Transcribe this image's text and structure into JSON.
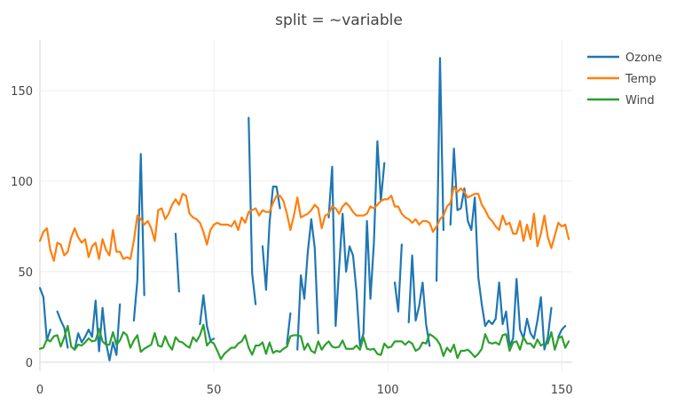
{
  "chart_data": {
    "type": "line",
    "title": "split = ~variable",
    "xlabel": "",
    "ylabel": "",
    "xlim": [
      0,
      153
    ],
    "ylim": [
      -5,
      178
    ],
    "x_ticks": [
      0,
      50,
      100,
      150
    ],
    "y_ticks": [
      0,
      50,
      100,
      150
    ],
    "legend_position": "top-right",
    "series": [
      {
        "name": "Ozone",
        "color": "#1f77b4",
        "values": [
          41,
          36,
          12,
          18,
          null,
          28,
          23,
          19,
          8,
          null,
          7,
          16,
          11,
          14,
          18,
          14,
          34,
          6,
          30,
          11,
          1,
          11,
          4,
          32,
          null,
          null,
          null,
          23,
          45,
          115,
          37,
          null,
          null,
          null,
          null,
          null,
          null,
          29,
          null,
          71,
          39,
          null,
          null,
          23,
          null,
          null,
          21,
          37,
          20,
          12,
          13,
          null,
          null,
          null,
          null,
          null,
          null,
          null,
          null,
          null,
          135,
          49,
          32,
          null,
          64,
          40,
          77,
          97,
          97,
          85,
          null,
          10,
          27,
          null,
          7,
          48,
          35,
          61,
          79,
          63,
          16,
          null,
          null,
          80,
          108,
          20,
          52,
          82,
          50,
          64,
          59,
          39,
          9,
          16,
          78,
          35,
          66,
          122,
          89,
          110,
          null,
          null,
          44,
          28,
          65,
          null,
          22,
          59,
          23,
          31,
          44,
          21,
          9,
          null,
          45,
          168,
          73,
          null,
          76,
          118,
          84,
          85,
          96,
          78,
          73,
          91,
          47,
          32,
          20,
          23,
          21,
          24,
          44,
          21,
          28,
          9,
          13,
          46,
          18,
          13,
          24,
          16,
          13,
          23,
          36,
          7,
          14,
          30,
          null,
          14,
          18,
          20
        ]
      },
      {
        "name": "Temp",
        "color": "#ff7f0e",
        "values": [
          67,
          72,
          74,
          62,
          56,
          66,
          65,
          59,
          61,
          69,
          74,
          69,
          66,
          68,
          58,
          64,
          66,
          57,
          68,
          62,
          59,
          73,
          61,
          61,
          57,
          58,
          57,
          67,
          81,
          79,
          76,
          78,
          74,
          67,
          84,
          85,
          79,
          82,
          87,
          90,
          87,
          93,
          92,
          82,
          80,
          79,
          77,
          72,
          65,
          73,
          76,
          77,
          76,
          76,
          76,
          75,
          78,
          73,
          80,
          77,
          83,
          84,
          85,
          81,
          84,
          83,
          83,
          88,
          92,
          92,
          89,
          82,
          73,
          81,
          91,
          80,
          81,
          82,
          84,
          87,
          85,
          74,
          81,
          82,
          86,
          85,
          82,
          86,
          88,
          86,
          83,
          81,
          81,
          81,
          82,
          86,
          85,
          87,
          89,
          90,
          90,
          92,
          86,
          86,
          82,
          80,
          79,
          77,
          79,
          76,
          78,
          78,
          77,
          72,
          75,
          79,
          81,
          86,
          88,
          97,
          94,
          96,
          94,
          91,
          92,
          93,
          93,
          87,
          84,
          80,
          78,
          75,
          73,
          81,
          76,
          77,
          71,
          71,
          78,
          67,
          76,
          68,
          82,
          64,
          71,
          81,
          69,
          63,
          70,
          77,
          75,
          76,
          68
        ]
      },
      {
        "name": "Wind",
        "color": "#2ca02c",
        "values": [
          7.4,
          8.0,
          12.6,
          11.5,
          14.3,
          14.9,
          8.6,
          13.8,
          20.1,
          8.6,
          6.9,
          9.7,
          9.2,
          10.9,
          13.2,
          11.5,
          12.0,
          18.4,
          11.5,
          9.7,
          9.7,
          16.6,
          9.7,
          12.0,
          16.6,
          14.9,
          8.0,
          12.0,
          14.9,
          5.7,
          7.4,
          8.6,
          9.7,
          16.1,
          9.2,
          8.6,
          14.3,
          9.7,
          6.9,
          13.8,
          11.5,
          10.9,
          9.2,
          8.0,
          13.8,
          11.5,
          14.9,
          20.7,
          9.2,
          11.5,
          10.3,
          6.3,
          1.7,
          4.6,
          6.3,
          8.0,
          8.0,
          10.3,
          11.5,
          14.9,
          8.0,
          4.1,
          9.2,
          9.2,
          10.9,
          4.6,
          10.9,
          5.1,
          6.3,
          5.7,
          7.4,
          8.6,
          14.3,
          14.9,
          14.9,
          14.3,
          6.9,
          10.3,
          6.3,
          5.1,
          11.5,
          6.9,
          9.7,
          11.5,
          8.6,
          8.0,
          8.6,
          12.0,
          7.4,
          7.4,
          7.4,
          9.2,
          6.9,
          13.8,
          7.4,
          6.9,
          7.4,
          4.6,
          4.0,
          10.3,
          8.0,
          8.6,
          11.5,
          11.5,
          11.5,
          9.7,
          11.5,
          10.3,
          6.3,
          7.4,
          10.9,
          10.3,
          15.5,
          14.3,
          12.6,
          9.7,
          3.4,
          8.0,
          5.7,
          9.7,
          2.3,
          6.3,
          6.3,
          6.9,
          5.1,
          2.8,
          4.6,
          7.4,
          15.5,
          10.9,
          10.3,
          10.9,
          9.7,
          14.9,
          15.5,
          6.3,
          10.9,
          11.5,
          6.9,
          13.8,
          10.3,
          10.3,
          8.0,
          12.6,
          9.2,
          10.3,
          10.3,
          16.6,
          6.9,
          13.2,
          14.3,
          8.0,
          11.5
        ]
      }
    ]
  }
}
